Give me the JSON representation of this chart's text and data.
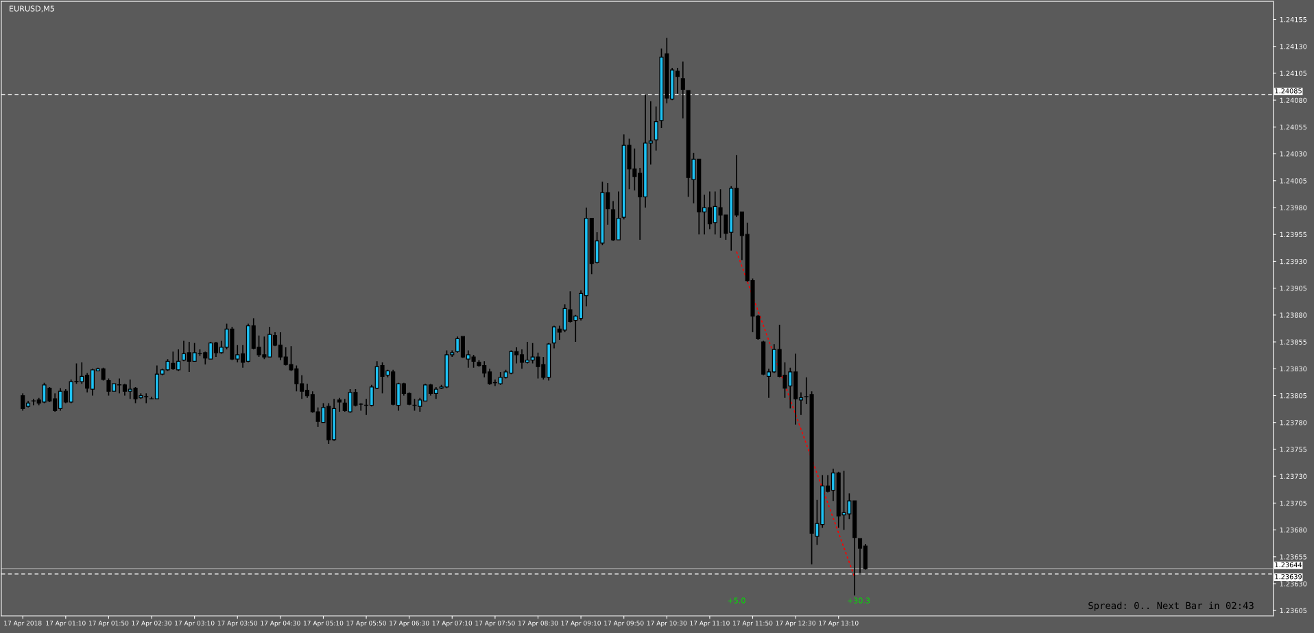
{
  "chart_data": {
    "type": "candlestick",
    "title": "EURUSD,M5",
    "colors": [
      "#000000",
      "#1ec3f5",
      "#1ec3f5",
      "#000000",
      "#1ec3f5",
      "#000000",
      "#000000",
      "#1ec3f5",
      "#000000",
      "#1ec3f5",
      "#1ec3f5",
      "#1ec3f5",
      "#000000",
      "#1ec3f5",
      "#1ec3f5",
      "#000000",
      "#000000",
      "#1ec3f5",
      "#1ec3f5",
      "#000000",
      "#1ec3f5",
      "#000000",
      "#1ec3f5",
      "#1ec3f5",
      "#1ec3f5",
      "#1ec3f5",
      "#1ec3f5",
      "#1ec3f5",
      "#000000",
      "#1ec3f5",
      "#1ec3f5",
      "#000000",
      "#1ec3f5",
      "#1ec3f5",
      "#000000",
      "#1ec3f5",
      "#000000",
      "#1ec3f5",
      "#1ec3f5",
      "#000000",
      "#1ec3f5",
      "#000000",
      "#1ec3f5",
      "#000000",
      "#000000",
      "#000000",
      "#1ec3f5",
      "#000000",
      "#000000",
      "#000000",
      "#000000",
      "#000000",
      "#000000",
      "#000000",
      "#000000",
      "#000000",
      "#1ec3f5",
      "#000000",
      "#1ec3f5",
      "#000000",
      "#000000",
      "#1ec3f5",
      "#000000",
      "#1ec3f5",
      "#1ec3f5",
      "#1ec3f5",
      "#1ec3f5",
      "#000000",
      "#1ec3f5",
      "#000000",
      "#1ec3f5",
      "#000000",
      "#000000",
      "#1ec3f5",
      "#1ec3f5",
      "#1ec3f5",
      "#000000",
      "#1ec3f5",
      "#1ec3f5",
      "#1ec3f5",
      "#1ec3f5",
      "#1ec3f5",
      "#000000",
      "#1ec3f5",
      "#000000",
      "#000000",
      "#000000",
      "#000000",
      "#1ec3f5",
      "#1ec3f5",
      "#1ec3f5",
      "#1ec3f5",
      "#000000",
      "#000000",
      "#1ec3f5",
      "#1ec3f5",
      "#000000",
      "#000000",
      "#1ec3f5",
      "#1ec3f5",
      "#000000",
      "#1ec3f5",
      "#000000",
      "#1ec3f5",
      "#1ec3f5",
      "#1ec3f5",
      "#000000",
      "#1ec3f5",
      "#1ec3f5",
      "#000000",
      "#000000",
      "#1ec3f5",
      "#1ec3f5",
      "#000000",
      "#000000",
      "#000000",
      "#1ec3f5",
      "#1ec3f5",
      "#1ec3f5",
      "#1ec3f5",
      "#000000",
      "#1ec3f5",
      "#000000",
      "#000000",
      "#000000",
      "#1ec3f5",
      "#000000",
      "#1ec3f5",
      "#000000",
      "#1ec3f5",
      "#000000",
      "#000000",
      "#1ec3f5",
      "#000000",
      "#000000",
      "#000000",
      "#000000",
      "#000000",
      "#000000",
      "#1ec3f5",
      "#1ec3f5",
      "#000000",
      "#000000",
      "#1ec3f5",
      "#000000",
      "#1ec3f5",
      "#1ec3f5",
      "#000000",
      "#1ec3f5",
      "#1ec3f5",
      "#000000",
      "#1ec3f5",
      "#000000",
      "#1ec3f5",
      "#1ec3f5",
      "#000000",
      "#000000",
      "#000000"
    ],
    "x": [
      "2018-04-17T00:30",
      "2018-04-17T00:35",
      "2018-04-17T00:40",
      "2018-04-17T00:45",
      "2018-04-17T00:50",
      "2018-04-17T00:55",
      "2018-04-17T01:00",
      "2018-04-17T01:05",
      "2018-04-17T01:10",
      "2018-04-17T01:15",
      "2018-04-17T01:20",
      "2018-04-17T01:25",
      "2018-04-17T01:30",
      "2018-04-17T01:35",
      "2018-04-17T01:40",
      "2018-04-17T01:45",
      "2018-04-17T01:50",
      "2018-04-17T01:55",
      "2018-04-17T02:00",
      "2018-04-17T02:05",
      "2018-04-17T02:10",
      "2018-04-17T02:15",
      "2018-04-17T02:20",
      "2018-04-17T02:25",
      "2018-04-17T02:30",
      "2018-04-17T02:35",
      "2018-04-17T02:40",
      "2018-04-17T02:45",
      "2018-04-17T02:50",
      "2018-04-17T02:55",
      "2018-04-17T03:00",
      "2018-04-17T03:05",
      "2018-04-17T03:10",
      "2018-04-17T03:15",
      "2018-04-17T03:20",
      "2018-04-17T03:25",
      "2018-04-17T03:30",
      "2018-04-17T03:35",
      "2018-04-17T03:40",
      "2018-04-17T03:45",
      "2018-04-17T03:50",
      "2018-04-17T03:55",
      "2018-04-17T04:00",
      "2018-04-17T04:05",
      "2018-04-17T04:10",
      "2018-04-17T04:15",
      "2018-04-17T04:20",
      "2018-04-17T04:25",
      "2018-04-17T04:30",
      "2018-04-17T04:35",
      "2018-04-17T04:40",
      "2018-04-17T04:45",
      "2018-04-17T04:50",
      "2018-04-17T04:55",
      "2018-04-17T05:00",
      "2018-04-17T05:05",
      "2018-04-17T05:10",
      "2018-04-17T05:15",
      "2018-04-17T05:20",
      "2018-04-17T05:25",
      "2018-04-17T05:30",
      "2018-04-17T05:35",
      "2018-04-17T05:40",
      "2018-04-17T05:45",
      "2018-04-17T05:50",
      "2018-04-17T05:55",
      "2018-04-17T06:00",
      "2018-04-17T06:05",
      "2018-04-17T06:10",
      "2018-04-17T06:15",
      "2018-04-17T06:20",
      "2018-04-17T06:25",
      "2018-04-17T06:30",
      "2018-04-17T06:35",
      "2018-04-17T06:40",
      "2018-04-17T06:45",
      "2018-04-17T06:50",
      "2018-04-17T06:55",
      "2018-04-17T07:00",
      "2018-04-17T07:05",
      "2018-04-17T07:10",
      "2018-04-17T07:15",
      "2018-04-17T07:20",
      "2018-04-17T07:25",
      "2018-04-17T07:30",
      "2018-04-17T07:35",
      "2018-04-17T07:40",
      "2018-04-17T07:45",
      "2018-04-17T07:50",
      "2018-04-17T07:55",
      "2018-04-17T08:00",
      "2018-04-17T08:05",
      "2018-04-17T08:10",
      "2018-04-17T08:15",
      "2018-04-17T08:20",
      "2018-04-17T08:25",
      "2018-04-17T08:30",
      "2018-04-17T08:35",
      "2018-04-17T08:40",
      "2018-04-17T08:45",
      "2018-04-17T08:50",
      "2018-04-17T08:55",
      "2018-04-17T09:00",
      "2018-04-17T09:05",
      "2018-04-17T09:10",
      "2018-04-17T09:15",
      "2018-04-17T09:20",
      "2018-04-17T09:25",
      "2018-04-17T09:30",
      "2018-04-17T09:35",
      "2018-04-17T09:40",
      "2018-04-17T09:45",
      "2018-04-17T09:50",
      "2018-04-17T09:55",
      "2018-04-17T10:00",
      "2018-04-17T10:05",
      "2018-04-17T10:10",
      "2018-04-17T10:15",
      "2018-04-17T10:20",
      "2018-04-17T10:25",
      "2018-04-17T10:30",
      "2018-04-17T10:35",
      "2018-04-17T10:40",
      "2018-04-17T10:45",
      "2018-04-17T10:50",
      "2018-04-17T10:55",
      "2018-04-17T11:00",
      "2018-04-17T11:05",
      "2018-04-17T11:10",
      "2018-04-17T11:15",
      "2018-04-17T11:20",
      "2018-04-17T11:25",
      "2018-04-17T11:30",
      "2018-04-17T11:35",
      "2018-04-17T11:40",
      "2018-04-17T11:45",
      "2018-04-17T11:50",
      "2018-04-17T11:55",
      "2018-04-17T12:00",
      "2018-04-17T12:05",
      "2018-04-17T12:10",
      "2018-04-17T12:15",
      "2018-04-17T12:20",
      "2018-04-17T12:25",
      "2018-04-17T12:30",
      "2018-04-17T12:35",
      "2018-04-17T12:40",
      "2018-04-17T12:45",
      "2018-04-17T12:50",
      "2018-04-17T12:55",
      "2018-04-17T13:00",
      "2018-04-17T13:05",
      "2018-04-17T13:10",
      "2018-04-17T13:15",
      "2018-04-17T13:20",
      "2018-04-17T13:25",
      "2018-04-17T13:30",
      "2018-04-17T13:35"
    ],
    "ohlc": [
      [
        1.23805,
        1.23807,
        1.23791,
        1.23793
      ],
      [
        1.23795,
        1.238,
        1.23794,
        1.23798
      ],
      [
        1.238,
        1.23802,
        1.23796,
        1.238
      ],
      [
        1.23801,
        1.23803,
        1.23796,
        1.23798
      ],
      [
        1.23799,
        1.23817,
        1.23798,
        1.23815
      ],
      [
        1.23812,
        1.23813,
        1.23799,
        1.238
      ],
      [
        1.23802,
        1.23807,
        1.2379,
        1.23791
      ],
      [
        1.23793,
        1.23812,
        1.23791,
        1.23809
      ],
      [
        1.23809,
        1.23811,
        1.23798,
        1.23799
      ],
      [
        1.23799,
        1.2382,
        1.23798,
        1.23818
      ],
      [
        1.23818,
        1.23835,
        1.23816,
        1.23818
      ],
      [
        1.23818,
        1.23836,
        1.23816,
        1.23823
      ],
      [
        1.23824,
        1.23826,
        1.23808,
        1.23812
      ],
      [
        1.23811,
        1.2383,
        1.23805,
        1.23829
      ],
      [
        1.23828,
        1.23831,
        1.23828,
        1.2383
      ],
      [
        1.2383,
        1.23831,
        1.23819,
        1.2382
      ],
      [
        1.23819,
        1.23821,
        1.23805,
        1.23809
      ],
      [
        1.23809,
        1.23816,
        1.23809,
        1.23816
      ],
      [
        1.23815,
        1.23821,
        1.23807,
        1.23815
      ],
      [
        1.23815,
        1.23816,
        1.23805,
        1.23809
      ],
      [
        1.23809,
        1.2382,
        1.23802,
        1.23811
      ],
      [
        1.23812,
        1.23813,
        1.23798,
        1.23802
      ],
      [
        1.23803,
        1.23807,
        1.23802,
        1.23805
      ],
      [
        1.23804,
        1.23807,
        1.23798,
        1.23804
      ],
      [
        1.23802,
        1.23804,
        1.23802,
        1.23802
      ],
      [
        1.23802,
        1.23833,
        1.23802,
        1.23825
      ],
      [
        1.23825,
        1.2383,
        1.23824,
        1.23829
      ],
      [
        1.23829,
        1.23839,
        1.23828,
        1.23837
      ],
      [
        1.23835,
        1.23846,
        1.23829,
        1.2383
      ],
      [
        1.23829,
        1.23848,
        1.23828,
        1.23837
      ],
      [
        1.23838,
        1.23856,
        1.23837,
        1.23844
      ],
      [
        1.23845,
        1.23855,
        1.23827,
        1.23837
      ],
      [
        1.23837,
        1.23854,
        1.23837,
        1.23845
      ],
      [
        1.23844,
        1.23848,
        1.23842,
        1.23844
      ],
      [
        1.23845,
        1.23846,
        1.23834,
        1.2384
      ],
      [
        1.23839,
        1.23855,
        1.23839,
        1.23854
      ],
      [
        1.23854,
        1.23855,
        1.23841,
        1.23845
      ],
      [
        1.23845,
        1.23856,
        1.23844,
        1.2385
      ],
      [
        1.2385,
        1.23872,
        1.23848,
        1.23867
      ],
      [
        1.23867,
        1.23869,
        1.23838,
        1.23839
      ],
      [
        1.23839,
        1.23852,
        1.23836,
        1.23843
      ],
      [
        1.23844,
        1.23852,
        1.23831,
        1.23836
      ],
      [
        1.23837,
        1.23872,
        1.23836,
        1.2387
      ],
      [
        1.2387,
        1.23877,
        1.23848,
        1.23849
      ],
      [
        1.2385,
        1.23861,
        1.23841,
        1.23843
      ],
      [
        1.23843,
        1.2386,
        1.23839,
        1.23841
      ],
      [
        1.23841,
        1.23869,
        1.23841,
        1.23862
      ],
      [
        1.23861,
        1.23864,
        1.23851,
        1.23852
      ],
      [
        1.23852,
        1.23864,
        1.23838,
        1.23841
      ],
      [
        1.23841,
        1.2385,
        1.23833,
        1.23834
      ],
      [
        1.23834,
        1.23851,
        1.23828,
        1.23829
      ],
      [
        1.2383,
        1.23833,
        1.23809,
        1.23816
      ],
      [
        1.23816,
        1.23824,
        1.23802,
        1.23809
      ],
      [
        1.2381,
        1.23816,
        1.23803,
        1.23805
      ],
      [
        1.23806,
        1.23809,
        1.23789,
        1.2379
      ],
      [
        1.2379,
        1.23794,
        1.23776,
        1.23781
      ],
      [
        1.2378,
        1.23798,
        1.2378,
        1.23794
      ],
      [
        1.23795,
        1.23798,
        1.2376,
        1.23764
      ],
      [
        1.23764,
        1.23802,
        1.23763,
        1.23793
      ],
      [
        1.23801,
        1.23803,
        1.2379,
        1.23799
      ],
      [
        1.23798,
        1.23802,
        1.2379,
        1.23791
      ],
      [
        1.2379,
        1.23811,
        1.23789,
        1.23808
      ],
      [
        1.23808,
        1.23811,
        1.23795,
        1.23796
      ],
      [
        1.23797,
        1.23798,
        1.23791,
        1.23797
      ],
      [
        1.23796,
        1.23802,
        1.23787,
        1.23796
      ],
      [
        1.23796,
        1.23815,
        1.23795,
        1.23813
      ],
      [
        1.23812,
        1.23837,
        1.23811,
        1.23832
      ],
      [
        1.23833,
        1.23836,
        1.23807,
        1.23823
      ],
      [
        1.23824,
        1.23829,
        1.23822,
        1.23828
      ],
      [
        1.23827,
        1.23829,
        1.23796,
        1.23797
      ],
      [
        1.23796,
        1.23817,
        1.23791,
        1.23816
      ],
      [
        1.23816,
        1.23817,
        1.23805,
        1.23807
      ],
      [
        1.23807,
        1.23808,
        1.23796,
        1.23797
      ],
      [
        1.23796,
        1.23802,
        1.23791,
        1.23796
      ],
      [
        1.23795,
        1.23803,
        1.2379,
        1.23801
      ],
      [
        1.238,
        1.23816,
        1.238,
        1.23815
      ],
      [
        1.23815,
        1.23816,
        1.23805,
        1.23807
      ],
      [
        1.23807,
        1.23813,
        1.23802,
        1.23811
      ],
      [
        1.23812,
        1.23815,
        1.23811,
        1.23813
      ],
      [
        1.23813,
        1.23847,
        1.23812,
        1.23843
      ],
      [
        1.23843,
        1.23847,
        1.23841,
        1.23845
      ],
      [
        1.23846,
        1.2386,
        1.23845,
        1.23858
      ],
      [
        1.2386,
        1.2386,
        1.2384,
        1.23841
      ],
      [
        1.23839,
        1.23847,
        1.23831,
        1.23843
      ],
      [
        1.23841,
        1.23843,
        1.23831,
        1.23837
      ],
      [
        1.23836,
        1.23838,
        1.23832,
        1.23833
      ],
      [
        1.23833,
        1.23837,
        1.23822,
        1.23826
      ],
      [
        1.23827,
        1.2383,
        1.23815,
        1.23816
      ],
      [
        1.23817,
        1.2382,
        1.23814,
        1.23817
      ],
      [
        1.23816,
        1.23827,
        1.23815,
        1.23822
      ],
      [
        1.23822,
        1.23829,
        1.23821,
        1.23827
      ],
      [
        1.23826,
        1.23847,
        1.23825,
        1.23846
      ],
      [
        1.23846,
        1.2385,
        1.23835,
        1.23843
      ],
      [
        1.23843,
        1.23848,
        1.2383,
        1.23836
      ],
      [
        1.23836,
        1.23855,
        1.23835,
        1.23838
      ],
      [
        1.23838,
        1.23854,
        1.23835,
        1.23841
      ],
      [
        1.23841,
        1.23845,
        1.23821,
        1.23832
      ],
      [
        1.23834,
        1.23841,
        1.2382,
        1.23822
      ],
      [
        1.23822,
        1.23854,
        1.23819,
        1.23853
      ],
      [
        1.23854,
        1.2387,
        1.23849,
        1.23869
      ],
      [
        1.23867,
        1.2387,
        1.23857,
        1.23864
      ],
      [
        1.23866,
        1.2389,
        1.23864,
        1.23886
      ],
      [
        1.23885,
        1.23902,
        1.23873,
        1.23874
      ],
      [
        1.23875,
        1.2388,
        1.23855,
        1.23879
      ],
      [
        1.23877,
        1.23903,
        1.23875,
        1.239
      ],
      [
        1.23898,
        1.2398,
        1.23888,
        1.2397
      ],
      [
        1.2397,
        1.2397,
        1.23918,
        1.23928
      ],
      [
        1.23929,
        1.23957,
        1.23928,
        1.23949
      ],
      [
        1.23947,
        1.24004,
        1.23945,
        1.23994
      ],
      [
        1.23994,
        1.24003,
        1.23964,
        1.23979
      ],
      [
        1.23978,
        1.23986,
        1.23949,
        1.2395
      ],
      [
        1.2395,
        1.23995,
        1.2395,
        1.2397
      ],
      [
        1.23971,
        1.24048,
        1.23969,
        1.24038
      ],
      [
        1.24038,
        1.24044,
        1.23997,
        1.24016
      ],
      [
        1.24016,
        1.24035,
        1.23996,
        1.24009
      ],
      [
        1.24012,
        1.24017,
        1.2395,
        1.2399
      ],
      [
        1.2399,
        1.24085,
        1.2398,
        1.2404
      ],
      [
        1.2404,
        1.24079,
        1.2402,
        1.24042
      ],
      [
        1.24043,
        1.24074,
        1.24033,
        1.2406
      ],
      [
        1.24061,
        1.24128,
        1.24054,
        1.2412
      ],
      [
        1.24123,
        1.24138,
        1.24077,
        1.24082
      ],
      [
        1.24081,
        1.2411,
        1.2408,
        1.24108
      ],
      [
        1.24107,
        1.2411,
        1.24086,
        1.24102
      ],
      [
        1.241,
        1.24116,
        1.24063,
        1.2409
      ],
      [
        1.24089,
        1.24089,
        1.2399,
        1.24008
      ],
      [
        1.24006,
        1.24031,
        1.23984,
        1.24025
      ],
      [
        1.24025,
        1.24025,
        1.23955,
        1.23976
      ],
      [
        1.23976,
        1.23992,
        1.23955,
        1.2398
      ],
      [
        1.2398,
        1.23995,
        1.2396,
        1.23965
      ],
      [
        1.23966,
        1.23995,
        1.23955,
        1.23981
      ],
      [
        1.2398,
        1.23997,
        1.23952,
        1.23973
      ],
      [
        1.23973,
        1.23973,
        1.2395,
        1.23956
      ],
      [
        1.23957,
        1.24,
        1.2394,
        1.23998
      ],
      [
        1.23998,
        1.24029,
        1.23971,
        1.23973
      ],
      [
        1.23976,
        1.23976,
        1.23931,
        1.23954
      ],
      [
        1.23955,
        1.23966,
        1.23911,
        1.23912
      ],
      [
        1.23912,
        1.23914,
        1.23864,
        1.23879
      ],
      [
        1.23879,
        1.2388,
        1.23857,
        1.23858
      ],
      [
        1.23855,
        1.23856,
        1.23824,
        1.23825
      ],
      [
        1.23823,
        1.2383,
        1.23803,
        1.23827
      ],
      [
        1.23827,
        1.23853,
        1.23826,
        1.23848
      ],
      [
        1.23848,
        1.23871,
        1.23822,
        1.23823
      ],
      [
        1.23824,
        1.23836,
        1.23803,
        1.23812
      ],
      [
        1.23814,
        1.23831,
        1.23793,
        1.23827
      ],
      [
        1.23827,
        1.23844,
        1.23778,
        1.23802
      ],
      [
        1.23801,
        1.23808,
        1.23787,
        1.23803
      ],
      [
        1.23804,
        1.23822,
        1.23797,
        1.23804
      ],
      [
        1.23806,
        1.23809,
        1.23648,
        1.23677
      ],
      [
        1.23674,
        1.23708,
        1.23666,
        1.23686
      ],
      [
        1.23685,
        1.23731,
        1.23682,
        1.23721
      ],
      [
        1.23721,
        1.23731,
        1.23715,
        1.23716
      ],
      [
        1.23717,
        1.23737,
        1.23707,
        1.23733
      ],
      [
        1.23733,
        1.23734,
        1.23682,
        1.23693
      ],
      [
        1.23694,
        1.23735,
        1.2368,
        1.23696
      ],
      [
        1.23695,
        1.23714,
        1.2369,
        1.23707
      ],
      [
        1.23707,
        1.23707,
        1.23619,
        1.23673
      ],
      [
        1.23672,
        1.23672,
        1.2364,
        1.23663
      ],
      [
        1.23665,
        1.23667,
        1.23643,
        1.23644
      ]
    ],
    "series": [
      {
        "type": "line",
        "x": [
          "2018-04-17T11:35",
          "2018-04-17T13:25"
        ],
        "values": [
          1.23939,
          1.23636
        ],
        "color": "#ff0000",
        "line_style": "dotted"
      }
    ],
    "xlim": [
      "2018-04-17T00:10",
      "2018-04-17T19:55"
    ],
    "xticks": [
      {
        "value": "2018-04-17T00:30",
        "label": "17 Apr 2018"
      },
      {
        "value": "2018-04-17T01:10",
        "label": "17 Apr 01:10"
      },
      {
        "value": "2018-04-17T01:50",
        "label": "17 Apr 01:50"
      },
      {
        "value": "2018-04-17T02:30",
        "label": "17 Apr 02:30"
      },
      {
        "value": "2018-04-17T03:10",
        "label": "17 Apr 03:10"
      },
      {
        "value": "2018-04-17T03:50",
        "label": "17 Apr 03:50"
      },
      {
        "value": "2018-04-17T04:30",
        "label": "17 Apr 04:30"
      },
      {
        "value": "2018-04-17T05:10",
        "label": "17 Apr 05:10"
      },
      {
        "value": "2018-04-17T05:50",
        "label": "17 Apr 05:50"
      },
      {
        "value": "2018-04-17T06:30",
        "label": "17 Apr 06:30"
      },
      {
        "value": "2018-04-17T07:10",
        "label": "17 Apr 07:10"
      },
      {
        "value": "2018-04-17T07:50",
        "label": "17 Apr 07:50"
      },
      {
        "value": "2018-04-17T08:30",
        "label": "17 Apr 08:30"
      },
      {
        "value": "2018-04-17T09:10",
        "label": "17 Apr 09:10"
      },
      {
        "value": "2018-04-17T09:50",
        "label": "17 Apr 09:50"
      },
      {
        "value": "2018-04-17T10:30",
        "label": "17 Apr 10:30"
      },
      {
        "value": "2018-04-17T11:10",
        "label": "17 Apr 11:10"
      },
      {
        "value": "2018-04-17T11:50",
        "label": "17 Apr 11:50"
      },
      {
        "value": "2018-04-17T12:30",
        "label": "17 Apr 12:30"
      },
      {
        "value": "2018-04-17T13:10",
        "label": "17 Apr 13:10"
      }
    ],
    "ylim": [
      1.236,
      1.24172
    ],
    "yticks": [
      {
        "value": 1.23605,
        "label": "1.23605"
      },
      {
        "value": 1.2363,
        "label": "1.23630"
      },
      {
        "value": 1.23655,
        "label": "1.23655"
      },
      {
        "value": 1.2368,
        "label": "1.23680"
      },
      {
        "value": 1.23705,
        "label": "1.23705"
      },
      {
        "value": 1.2373,
        "label": "1.23730"
      },
      {
        "value": 1.23755,
        "label": "1.23755"
      },
      {
        "value": 1.2378,
        "label": "1.23780"
      },
      {
        "value": 1.23805,
        "label": "1.23805"
      },
      {
        "value": 1.2383,
        "label": "1.23830"
      },
      {
        "value": 1.23855,
        "label": "1.23855"
      },
      {
        "value": 1.2388,
        "label": "1.23880"
      },
      {
        "value": 1.23905,
        "label": "1.23905"
      },
      {
        "value": 1.2393,
        "label": "1.23930"
      },
      {
        "value": 1.23955,
        "label": "1.23955"
      },
      {
        "value": 1.2398,
        "label": "1.23980"
      },
      {
        "value": 1.24005,
        "label": "1.24005"
      },
      {
        "value": 1.2403,
        "label": "1.24030"
      },
      {
        "value": 1.24055,
        "label": "1.24055"
      },
      {
        "value": 1.2408,
        "label": "1.24080"
      },
      {
        "value": 1.24105,
        "label": "1.24105"
      },
      {
        "value": 1.2413,
        "label": "1.24130"
      },
      {
        "value": 1.24155,
        "label": "1.24155"
      }
    ],
    "ref_lines": [
      {
        "axis": "y",
        "value": 1.24085,
        "label": "1.24085",
        "color": "#ffffff",
        "line_style": "dashed"
      },
      {
        "axis": "y",
        "value": 1.23644,
        "label": "1.23644",
        "color": "#a0a0a0",
        "line_style": "solid"
      },
      {
        "axis": "y",
        "value": 1.23639,
        "label": "1.23639",
        "color": "#ffffff",
        "line_style": "dashed"
      }
    ],
    "annotations": [
      "+5.0",
      "+30.3",
      "Spread: 0.. Next Bar in 02:43"
    ]
  }
}
